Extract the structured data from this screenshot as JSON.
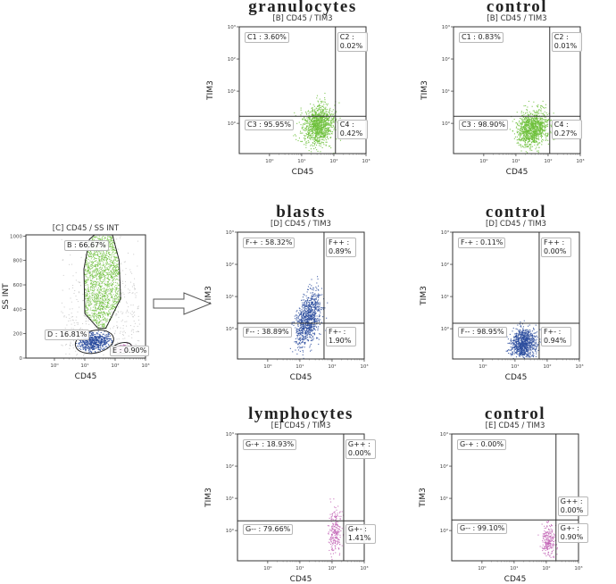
{
  "colors": {
    "granulocyte": "#6cbf3a",
    "blast": "#2b4c9e",
    "lymphocyte": "#c263b5",
    "debris": "#a8a8a8",
    "gate": "#222222"
  },
  "chart_data": [
    {
      "type": "scatter",
      "title": "granulocytes",
      "subtitle": "[B] CD45 / TIM3",
      "xlabel": "CD45",
      "ylabel": "TIM3",
      "xscale": "log",
      "yscale": "log",
      "xticks": [
        "10⁰",
        "10¹",
        "10²",
        "10³"
      ],
      "yticks": [
        "10⁰",
        "10¹",
        "10²",
        "10³"
      ],
      "xlim_log10": [
        -0.94,
        3
      ],
      "ylim_log10": [
        -0.94,
        3
      ],
      "threshold_log10": {
        "x": 2.05,
        "y": 0.22
      },
      "quadrants": {
        "ul": "C1 : 3.60%",
        "ur": "C2 : 0.02%",
        "ll": "C3 : 95.95%",
        "lr": "C4 : 0.42%"
      },
      "population": {
        "color": "granulocyte",
        "cx": 1.5,
        "cy": -0.05,
        "sx": 0.24,
        "sy": 0.32,
        "rho": 0.15,
        "n": 1100
      }
    },
    {
      "type": "scatter",
      "title": "control",
      "subtitle": "[B] CD45 / TIM3",
      "xlabel": "CD45",
      "ylabel": "TIM3",
      "xscale": "log",
      "yscale": "log",
      "xticks": [
        "10⁰",
        "10¹",
        "10²",
        "10³"
      ],
      "yticks": [
        "10⁰",
        "10¹",
        "10²",
        "10³"
      ],
      "xlim_log10": [
        -0.94,
        3
      ],
      "ylim_log10": [
        -0.94,
        3
      ],
      "threshold_log10": {
        "x": 2.05,
        "y": 0.22
      },
      "quadrants": {
        "ul": "C1 : 0.83%",
        "ur": "C2 : 0.01%",
        "ll": "C3 : 98.90%",
        "lr": "C4 : 0.27%"
      },
      "population": {
        "color": "granulocyte",
        "cx": 1.5,
        "cy": -0.15,
        "sx": 0.24,
        "sy": 0.28,
        "rho": 0.1,
        "n": 1100
      }
    },
    {
      "type": "scatter",
      "title": "blasts",
      "subtitle": "[D] CD45 / TIM3",
      "xlabel": "CD45",
      "ylabel": "TIM3",
      "xscale": "log",
      "yscale": "log",
      "xticks": [
        "10⁰",
        "10¹",
        "10²",
        "10³"
      ],
      "yticks": [
        "10⁰",
        "10¹",
        "10²",
        "10³"
      ],
      "xlim_log10": [
        -0.94,
        3
      ],
      "ylim_log10": [
        -0.94,
        3
      ],
      "threshold_log10": {
        "x": 1.75,
        "y": 0.17
      },
      "quadrants": {
        "ul": "F-+ : 58.32%",
        "ur": "F++ : 0.89%",
        "ll": "F-- : 38.89%",
        "lr": "F+- : 1.90%"
      },
      "population": {
        "color": "blast",
        "cx": 1.25,
        "cy": 0.3,
        "sx": 0.2,
        "sy": 0.42,
        "rho": 0.45,
        "n": 900
      }
    },
    {
      "type": "scatter",
      "title": "control",
      "subtitle": "[D] CD45 / TIM3",
      "xlabel": "CD45",
      "ylabel": "TIM3",
      "xscale": "log",
      "yscale": "log",
      "xticks": [
        "10⁰",
        "10¹",
        "10²",
        "10³"
      ],
      "yticks": [
        "10⁰",
        "10¹",
        "10²",
        "10³"
      ],
      "xlim_log10": [
        -0.94,
        3
      ],
      "ylim_log10": [
        -0.94,
        3
      ],
      "threshold_log10": {
        "x": 1.75,
        "y": 0.17
      },
      "quadrants": {
        "ul": "F-+ : 0.11%",
        "ur": "F++ : 0.00%",
        "ll": "F-- : 98.95%",
        "lr": "F+- : 0.94%"
      },
      "population": {
        "color": "blast",
        "cx": 1.25,
        "cy": -0.45,
        "sx": 0.2,
        "sy": 0.22,
        "rho": 0.1,
        "n": 900
      }
    },
    {
      "type": "scatter",
      "title": "lymphocytes",
      "subtitle": "[E] CD45 / TIM3",
      "xlabel": "CD45",
      "ylabel": "TIM3",
      "xscale": "log",
      "yscale": "log",
      "xticks": [
        "10⁰",
        "10¹",
        "10²",
        "10³"
      ],
      "yticks": [
        "10⁰",
        "10¹",
        "10²",
        "10³"
      ],
      "xlim_log10": [
        -0.94,
        3
      ],
      "ylim_log10": [
        -0.94,
        3
      ],
      "threshold_log10": {
        "x": 2.36,
        "y": 0.3
      },
      "quadrants": {
        "ul": "G-+ : 18.93%",
        "ur": "G++ : 0.00%",
        "ll": "G-- : 79.66%",
        "lr": "G+- : 1.41%"
      },
      "population": {
        "color": "lymphocyte",
        "cx": 2.08,
        "cy": -0.05,
        "sx": 0.1,
        "sy": 0.4,
        "rho": 0,
        "n": 220
      }
    },
    {
      "type": "scatter",
      "title": "control",
      "subtitle": "[E] CD45 / TIM3",
      "xlabel": "CD45",
      "ylabel": "TIM3",
      "xscale": "log",
      "yscale": "log",
      "xticks": [
        "10⁰",
        "10¹",
        "10²",
        "10³"
      ],
      "yticks": [
        "10⁰",
        "10¹",
        "10²",
        "10³"
      ],
      "xlim_log10": [
        -0.94,
        3
      ],
      "ylim_log10": [
        -0.94,
        3
      ],
      "threshold_log10": {
        "x": 2.3,
        "y": 0.33
      },
      "quadrants": {
        "ul": "G-+ : 0.00%",
        "ur": "G++ : 0.00%",
        "ll": "G-- : 99.10%",
        "lr": "G+- : 0.90%"
      },
      "population": {
        "color": "lymphocyte",
        "cx": 2.05,
        "cy": -0.3,
        "sx": 0.1,
        "sy": 0.25,
        "rho": 0,
        "n": 220
      }
    },
    {
      "type": "scatter",
      "subtitle": "[C] CD45 / SS INT",
      "xlabel": "CD45",
      "ylabel": "SS INT",
      "xscale": "log",
      "yscale": "linear",
      "xticks": [
        "10⁰",
        "10¹",
        "10²",
        "10³"
      ],
      "yticks": [
        "0",
        "200",
        "400",
        "600",
        "800",
        "1000"
      ],
      "xlim_log10": [
        -0.94,
        3
      ],
      "ylim": [
        0,
        1010
      ],
      "gates": {
        "B": {
          "label": "B : 66.67%",
          "polygon": [
            [
              1.32,
              1010
            ],
            [
              1.91,
              1010
            ],
            [
              2.13,
              803
            ],
            [
              2.18,
              487
            ],
            [
              2.08,
              438
            ],
            [
              1.69,
              243
            ],
            [
              1.44,
              243
            ],
            [
              1.0,
              365
            ],
            [
              0.97,
              730
            ],
            [
              1.15,
              973
            ]
          ],
          "color": "granulocyte",
          "n": 1500
        },
        "D": {
          "label": "D : 16.81%",
          "ellipse": {
            "cx": 1.32,
            "cy": 134,
            "rx": 0.64,
            "ry": 92,
            "rot": -12
          },
          "color": "blast",
          "n": 600
        },
        "E": {
          "label": "E : 0.90%",
          "ellipse": {
            "cx": 2.21,
            "cy": 80,
            "rx": 0.34,
            "ry": 44,
            "rot": -15
          },
          "color": "lymphocyte",
          "n": 70
        }
      },
      "debris_n": 450
    }
  ]
}
